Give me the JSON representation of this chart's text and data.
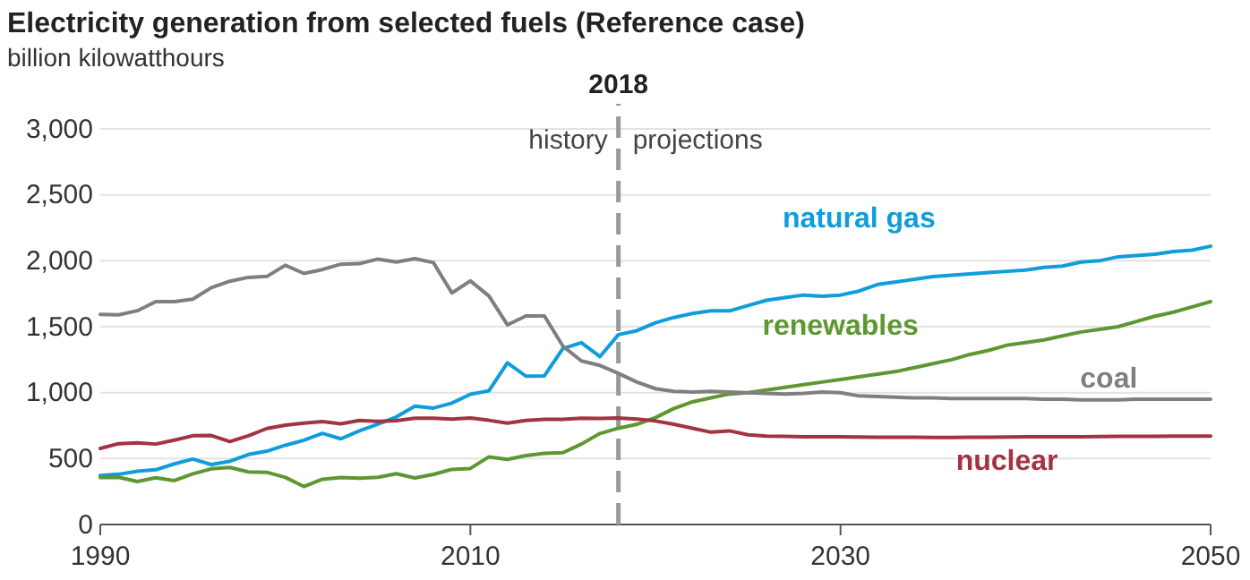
{
  "chart_data": {
    "type": "line",
    "title": "Electricity generation from selected fuels (Reference case)",
    "subtitle": "billion kilowatthours",
    "x": [
      1990,
      1991,
      1992,
      1993,
      1994,
      1995,
      1996,
      1997,
      1998,
      1999,
      2000,
      2001,
      2002,
      2003,
      2004,
      2005,
      2006,
      2007,
      2008,
      2009,
      2010,
      2011,
      2012,
      2013,
      2014,
      2015,
      2016,
      2017,
      2018,
      2019,
      2020,
      2021,
      2022,
      2023,
      2024,
      2025,
      2026,
      2027,
      2028,
      2029,
      2030,
      2031,
      2032,
      2033,
      2034,
      2035,
      2036,
      2037,
      2038,
      2039,
      2040,
      2041,
      2042,
      2043,
      2044,
      2045,
      2046,
      2047,
      2048,
      2049,
      2050
    ],
    "series": [
      {
        "name": "natural gas",
        "color": "#0f9ddb",
        "values": [
          372,
          381,
          404,
          415,
          460,
          496,
          455,
          479,
          531,
          556,
          601,
          639,
          691,
          650,
          710,
          761,
          816,
          897,
          883,
          921,
          988,
          1014,
          1226,
          1125,
          1127,
          1335,
          1379,
          1273,
          1440,
          1470,
          1530,
          1570,
          1600,
          1620,
          1620,
          1660,
          1700,
          1720,
          1740,
          1730,
          1740,
          1770,
          1820,
          1840,
          1860,
          1880,
          1890,
          1900,
          1910,
          1920,
          1930,
          1950,
          1960,
          1990,
          2000,
          2030,
          2040,
          2050,
          2070,
          2080,
          2110
        ]
      },
      {
        "name": "renewables",
        "color": "#5d9732",
        "values": [
          357,
          358,
          326,
          355,
          333,
          384,
          422,
          433,
          399,
          396,
          357,
          288,
          343,
          356,
          351,
          358,
          385,
          353,
          380,
          418,
          425,
          513,
          494,
          523,
          540,
          545,
          610,
          690,
          730,
          760,
          810,
          880,
          930,
          960,
          990,
          1000,
          1020,
          1040,
          1060,
          1080,
          1100,
          1120,
          1140,
          1160,
          1190,
          1220,
          1250,
          1290,
          1320,
          1360,
          1380,
          1400,
          1430,
          1460,
          1480,
          1500,
          1540,
          1580,
          1610,
          1650,
          1690
        ]
      },
      {
        "name": "coal",
        "color": "#7f7f7f",
        "values": [
          1594,
          1590,
          1621,
          1690,
          1690,
          1709,
          1796,
          1845,
          1874,
          1881,
          1966,
          1904,
          1933,
          1974,
          1978,
          2013,
          1991,
          2016,
          1986,
          1756,
          1847,
          1733,
          1514,
          1581,
          1582,
          1352,
          1240,
          1206,
          1146,
          1080,
          1030,
          1010,
          1005,
          1010,
          1005,
          1000,
          995,
          990,
          995,
          1005,
          1000,
          975,
          970,
          965,
          960,
          960,
          955,
          955,
          955,
          955,
          955,
          950,
          950,
          945,
          945,
          945,
          950,
          950,
          950,
          950,
          950
        ]
      },
      {
        "name": "nuclear",
        "color": "#a33340",
        "values": [
          577,
          613,
          619,
          610,
          640,
          673,
          675,
          629,
          673,
          728,
          754,
          769,
          780,
          764,
          789,
          782,
          787,
          806,
          806,
          799,
          807,
          790,
          769,
          789,
          797,
          797,
          806,
          805,
          807,
          800,
          785,
          760,
          730,
          700,
          710,
          680,
          670,
          668,
          666,
          665,
          665,
          663,
          662,
          662,
          662,
          660,
          660,
          662,
          662,
          663,
          665,
          665,
          665,
          666,
          667,
          668,
          668,
          669,
          670,
          670,
          670
        ]
      }
    ],
    "xlim": [
      1990,
      2050
    ],
    "xticks": [
      1990,
      2010,
      2030,
      2050
    ],
    "ylim": [
      0,
      3000
    ],
    "yticks": [
      0,
      {
        "value": 500,
        "label": "500"
      },
      {
        "value": 1000,
        "label": "1,000"
      },
      {
        "value": 1500,
        "label": "1,500"
      },
      {
        "value": 2000,
        "label": "2,000"
      },
      {
        "value": 2500,
        "label": "2,500"
      },
      {
        "value": 3000,
        "label": "3,000"
      }
    ],
    "grid": "y",
    "legend": false,
    "marker": "none",
    "line_style": "solid",
    "ref_lines": [
      {
        "axis": "x",
        "value": 2018,
        "label": "2018",
        "color": "#999999",
        "line_style": "dashed"
      }
    ],
    "annotations": [
      "history",
      "projections"
    ]
  }
}
